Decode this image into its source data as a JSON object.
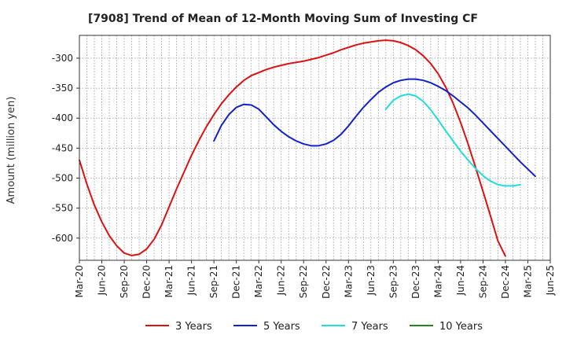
{
  "chart_data": {
    "type": "line",
    "title": "[7908]  Trend of Mean of 12-Month Moving Sum of Investing CF",
    "xlabel": "",
    "ylabel": "Amount (million yen)",
    "ylim": [
      -637,
      -262
    ],
    "yticks": [
      -300,
      -350,
      -400,
      -450,
      -500,
      -550,
      -600
    ],
    "ytick_labels": [
      "-300",
      "-350",
      "-400",
      "-450",
      "-500",
      "-550",
      "-600"
    ],
    "xtick_labels": [
      "Mar-20",
      "Jun-20",
      "Sep-20",
      "Dec-20",
      "Mar-21",
      "Jun-21",
      "Sep-21",
      "Dec-21",
      "Mar-22",
      "Jun-22",
      "Sep-22",
      "Dec-22",
      "Mar-23",
      "Jun-23",
      "Sep-23",
      "Dec-23",
      "Mar-24",
      "Jun-24",
      "Sep-24",
      "Dec-24",
      "Mar-25",
      "Jun-25"
    ],
    "grid": true,
    "legend_position": "bottom",
    "series": [
      {
        "name": "3 Years",
        "color": "#dd1111",
        "start_index": 0,
        "values": [
          -470,
          -510,
          -545,
          -573,
          -596,
          -613,
          -625,
          -629,
          -627,
          -618,
          -602,
          -578,
          -548,
          -518,
          -490,
          -462,
          -437,
          -414,
          -394,
          -376,
          -361,
          -348,
          -337,
          -329,
          -324,
          -319,
          -315,
          -312,
          -309,
          -307,
          -305,
          -302,
          -299,
          -295,
          -291,
          -286,
          -282,
          -278,
          -275,
          -273,
          -271,
          -270,
          -271,
          -274,
          -279,
          -286,
          -296,
          -309,
          -326,
          -348,
          -375,
          -407,
          -443,
          -482,
          -522,
          -563,
          -605,
          -630
        ]
      },
      {
        "name": "5 Years",
        "color": "#1122cc",
        "start_index": 18,
        "values": [
          -438,
          -412,
          -394,
          -382,
          -377,
          -378,
          -385,
          -398,
          -411,
          -422,
          -431,
          -438,
          -443,
          -446,
          -446,
          -443,
          -437,
          -427,
          -413,
          -397,
          -382,
          -369,
          -357,
          -348,
          -341,
          -337,
          -335,
          -335,
          -337,
          -341,
          -347,
          -354,
          -363,
          -373,
          -383,
          -395,
          -408,
          -421,
          -434,
          -447,
          -460,
          -473,
          -485,
          -497
        ]
      },
      {
        "name": "7 Years",
        "color": "#22dddd",
        "start_index": 41,
        "values": [
          -385,
          -370,
          -363,
          -360,
          -363,
          -372,
          -386,
          -403,
          -421,
          -438,
          -455,
          -470,
          -484,
          -496,
          -505,
          -511,
          -513,
          -513,
          -511
        ]
      },
      {
        "name": "10 Years",
        "color": "#228822",
        "start_index": 0,
        "values": []
      }
    ]
  }
}
